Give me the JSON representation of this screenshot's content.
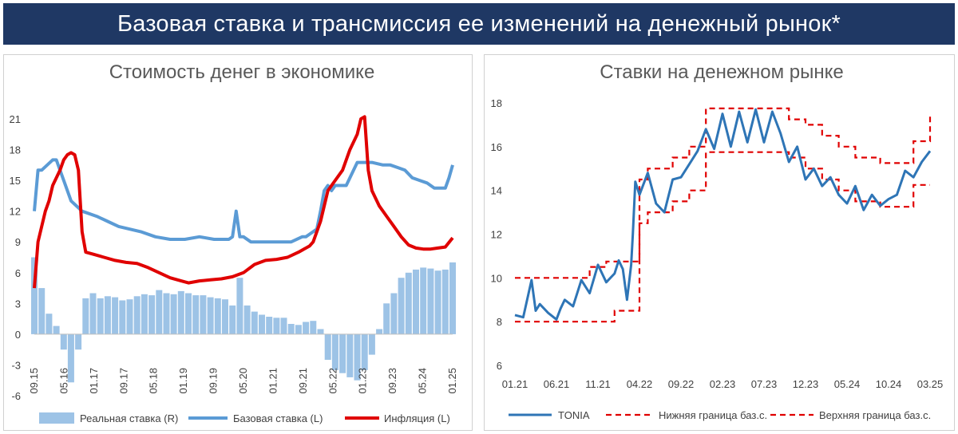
{
  "banner": {
    "title": "Базовая ставка и трансмиссия ее изменений на денежный рынок*"
  },
  "colors": {
    "banner_bg": "#1f3864",
    "real_rate": "#9dc3e6",
    "base_rate": "#5b9bd5",
    "inflation": "#e00000",
    "tonia": "#2e75b6",
    "corridor": "#e00000"
  },
  "chart_data": [
    {
      "type": "line",
      "title": "Стоимость денег в экономике",
      "x_ticks": [
        "09.15",
        "05.16",
        "01.17",
        "09.17",
        "05.18",
        "01.19",
        "09.19",
        "05.20",
        "01.21",
        "09.21",
        "05.22",
        "01.23",
        "09.23",
        "05.24",
        "01.25"
      ],
      "x_range": [
        "2015-09",
        "2025-03"
      ],
      "ylim": [
        -6,
        21
      ],
      "y_ticks": [
        -6,
        -3,
        0,
        3,
        6,
        9,
        12,
        15,
        18,
        21
      ],
      "grid": false,
      "legend_position": "bottom",
      "series": [
        {
          "name": "Реальная ставка (R)",
          "type": "bar",
          "x": [
            "2015-09",
            "2015-11",
            "2016-01",
            "2016-03",
            "2016-05",
            "2016-07",
            "2016-09",
            "2016-11",
            "2017-01",
            "2017-03",
            "2017-05",
            "2017-07",
            "2017-09",
            "2017-11",
            "2018-01",
            "2018-03",
            "2018-05",
            "2018-07",
            "2018-09",
            "2018-11",
            "2019-01",
            "2019-03",
            "2019-05",
            "2019-07",
            "2019-09",
            "2019-11",
            "2020-01",
            "2020-03",
            "2020-05",
            "2020-07",
            "2020-09",
            "2020-11",
            "2021-01",
            "2021-03",
            "2021-05",
            "2021-07",
            "2021-09",
            "2021-11",
            "2022-01",
            "2022-03",
            "2022-05",
            "2022-07",
            "2022-09",
            "2022-11",
            "2023-01",
            "2023-03",
            "2023-05",
            "2023-07",
            "2023-09",
            "2023-11",
            "2024-01",
            "2024-03",
            "2024-05",
            "2024-07",
            "2024-09",
            "2024-11",
            "2025-01",
            "2025-03"
          ],
          "values": [
            7.5,
            4.5,
            2.0,
            0.8,
            -1.5,
            -4.7,
            -1.5,
            3.5,
            4.0,
            3.5,
            3.7,
            3.6,
            3.3,
            3.4,
            3.7,
            3.9,
            3.8,
            4.3,
            4.0,
            3.9,
            4.2,
            4.0,
            3.8,
            3.8,
            3.6,
            3.5,
            3.4,
            2.8,
            5.5,
            2.8,
            2.2,
            1.9,
            1.7,
            1.6,
            1.6,
            1.0,
            0.9,
            1.2,
            1.3,
            0.5,
            -2.5,
            -3.5,
            -3.8,
            -4.2,
            -4.5,
            -3.5,
            -2.0,
            0.5,
            3.0,
            4.0,
            5.5,
            6.0,
            6.3,
            6.5,
            6.4,
            6.2,
            6.3,
            7.0
          ]
        },
        {
          "name": "Базовая ставка (L)",
          "type": "line",
          "x": [
            "2015-09",
            "2015-10",
            "2015-11",
            "2016-02",
            "2016-03",
            "2016-05",
            "2016-07",
            "2016-10",
            "2017-02",
            "2017-05",
            "2017-08",
            "2017-11",
            "2018-02",
            "2018-06",
            "2018-10",
            "2019-02",
            "2019-06",
            "2019-10",
            "2020-02",
            "2020-03",
            "2020-04",
            "2020-05",
            "2020-06",
            "2020-08",
            "2020-10",
            "2021-01",
            "2021-04",
            "2021-07",
            "2021-10",
            "2021-11",
            "2021-12",
            "2022-02",
            "2022-03",
            "2022-04",
            "2022-05",
            "2022-06",
            "2022-07",
            "2022-08",
            "2022-09",
            "2022-10",
            "2022-12",
            "2023-01",
            "2023-02",
            "2023-03",
            "2023-05",
            "2023-08",
            "2023-10",
            "2023-12",
            "2024-02",
            "2024-04",
            "2024-06",
            "2024-08",
            "2024-10",
            "2024-12",
            "2025-01",
            "2025-02",
            "2025-03"
          ],
          "values": [
            12,
            16,
            16,
            17,
            17,
            15,
            13,
            12,
            11.5,
            11,
            10.5,
            10.25,
            10,
            9.5,
            9.25,
            9.25,
            9.5,
            9.25,
            9.25,
            9.5,
            12,
            9.5,
            9.5,
            9,
            9,
            9,
            9,
            9,
            9.5,
            9.5,
            9.75,
            10.25,
            12,
            14,
            14.5,
            14,
            14.5,
            14.5,
            14.5,
            14.5,
            16,
            16.75,
            16.75,
            16.75,
            16.75,
            16.5,
            16.5,
            16.25,
            16,
            15.25,
            15,
            14.75,
            14.25,
            14.25,
            14.25,
            15.25,
            16.5
          ]
        },
        {
          "name": "Инфляция (L)",
          "type": "line",
          "x": [
            "2015-09",
            "2015-10",
            "2015-12",
            "2016-01",
            "2016-02",
            "2016-04",
            "2016-05",
            "2016-06",
            "2016-07",
            "2016-08",
            "2016-09",
            "2016-10",
            "2016-11",
            "2017-01",
            "2017-04",
            "2017-07",
            "2017-10",
            "2018-01",
            "2018-04",
            "2018-07",
            "2018-10",
            "2019-01",
            "2019-03",
            "2019-06",
            "2019-09",
            "2019-12",
            "2020-03",
            "2020-06",
            "2020-09",
            "2020-12",
            "2021-03",
            "2021-06",
            "2021-09",
            "2021-12",
            "2022-01",
            "2022-03",
            "2022-05",
            "2022-07",
            "2022-09",
            "2022-11",
            "2023-01",
            "2023-02",
            "2023-03",
            "2023-04",
            "2023-05",
            "2023-07",
            "2023-09",
            "2023-11",
            "2024-01",
            "2024-03",
            "2024-05",
            "2024-07",
            "2024-09",
            "2024-11",
            "2025-01",
            "2025-03"
          ],
          "values": [
            4.5,
            9,
            12,
            13,
            14.5,
            16,
            17,
            17.5,
            17.7,
            17.5,
            16,
            10,
            8,
            7.8,
            7.5,
            7.2,
            7,
            6.9,
            6.5,
            6,
            5.5,
            5.2,
            5,
            5.2,
            5.3,
            5.4,
            5.6,
            6,
            6.8,
            7.2,
            7.3,
            7.5,
            8,
            8.6,
            9,
            11,
            14,
            15,
            16,
            18,
            19.5,
            21,
            21.2,
            16,
            14,
            12.5,
            11.5,
            10.5,
            9.5,
            8.7,
            8.4,
            8.3,
            8.3,
            8.4,
            8.5,
            9.4
          ]
        }
      ]
    },
    {
      "type": "line",
      "title": "Ставки на денежном рынке",
      "x_ticks": [
        "01.21",
        "06.21",
        "11.21",
        "04.22",
        "09.22",
        "02.23",
        "07.23",
        "12.23",
        "05.24",
        "10.24",
        "03.25"
      ],
      "x_range": [
        "2021-01",
        "2025-03"
      ],
      "ylim": [
        6,
        18
      ],
      "y_ticks": [
        6,
        8,
        10,
        12,
        14,
        16,
        18
      ],
      "grid": false,
      "legend_position": "bottom",
      "series": [
        {
          "name": "TONIA",
          "x": [
            "2021-01",
            "2021-02",
            "2021-03",
            "2021-03.5",
            "2021-04",
            "2021-05",
            "2021-06",
            "2021-06.5",
            "2021-07",
            "2021-08",
            "2021-09",
            "2021-10",
            "2021-11",
            "2021-12",
            "2022-01",
            "2022-01.5",
            "2022-02",
            "2022-02.5",
            "2022-03",
            "2022-03.2",
            "2022-03.5",
            "2022-04",
            "2022-05",
            "2022-06",
            "2022-07",
            "2022-08",
            "2022-09",
            "2022-10",
            "2022-11",
            "2022-12",
            "2023-01",
            "2023-02",
            "2023-03",
            "2023-04",
            "2023-05",
            "2023-06",
            "2023-07",
            "2023-08",
            "2023-09",
            "2023-10",
            "2023-11",
            "2023-12",
            "2024-01",
            "2024-02",
            "2024-03",
            "2024-04",
            "2024-05",
            "2024-06",
            "2024-07",
            "2024-08",
            "2024-09",
            "2024-10",
            "2024-11",
            "2024-12",
            "2025-01",
            "2025-02",
            "2025-03"
          ],
          "values": [
            8.3,
            8.2,
            9.9,
            8.5,
            8.8,
            8.4,
            8.1,
            8.6,
            9.0,
            8.7,
            9.9,
            9.3,
            10.6,
            9.8,
            10.2,
            10.8,
            10.4,
            9.0,
            10.6,
            12.0,
            14.4,
            13.8,
            14.8,
            13.4,
            13.0,
            14.5,
            14.6,
            15.2,
            15.8,
            16.8,
            15.9,
            17.5,
            16.0,
            17.6,
            16.2,
            17.7,
            16.2,
            17.6,
            16.6,
            15.3,
            16.0,
            14.5,
            15.0,
            14.2,
            14.6,
            13.8,
            13.4,
            14.2,
            13.1,
            13.8,
            13.3,
            13.6,
            13.8,
            14.9,
            14.6,
            15.3,
            15.8
          ]
        },
        {
          "name": "Нижняя граница баз.с.",
          "x": [
            "2021-01",
            "2021-12",
            "2022-01",
            "2022-03",
            "2022-04",
            "2022-05",
            "2022-08",
            "2022-10",
            "2022-12",
            "2023-03",
            "2023-08",
            "2023-10",
            "2023-12",
            "2024-02",
            "2024-04",
            "2024-06",
            "2024-09",
            "2024-10",
            "2025-01",
            "2025-03"
          ],
          "values": [
            8,
            8,
            8.5,
            8.5,
            12.5,
            13,
            13.5,
            14,
            15.75,
            15.75,
            15.75,
            15.5,
            15,
            14.5,
            14,
            13.5,
            13.25,
            13.25,
            14.25,
            14.25
          ]
        },
        {
          "name": "Верхняя граница баз.с.",
          "x": [
            "2021-01",
            "2021-03",
            "2021-07",
            "2021-10",
            "2021-12",
            "2022-03",
            "2022-04",
            "2022-05",
            "2022-08",
            "2022-10",
            "2022-12",
            "2023-03",
            "2023-08",
            "2023-10",
            "2023-12",
            "2024-02",
            "2024-04",
            "2024-06",
            "2024-09",
            "2024-10",
            "2025-01",
            "2025-02",
            "2025-03"
          ],
          "values": [
            10,
            10,
            10,
            10.5,
            10.75,
            10.75,
            14.5,
            15,
            15.5,
            16,
            17.75,
            17.75,
            17.75,
            17.25,
            17,
            16.5,
            16,
            15.5,
            15.25,
            15.25,
            16.25,
            16.25,
            17.5
          ]
        }
      ]
    }
  ]
}
